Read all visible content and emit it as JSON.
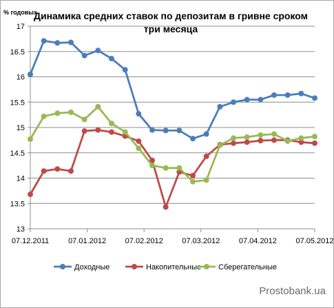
{
  "chart_data": {
    "type": "line",
    "title_line1": "Динамика средних ставок по депозитам в гривне сроком",
    "title_line2": "три месяца",
    "ylabel": "% годовых",
    "ylim": [
      13,
      17
    ],
    "yticks": [
      "13",
      "13.5",
      "14",
      "14.5",
      "15",
      "15.5",
      "16",
      "16.5",
      "17"
    ],
    "xticklabels": [
      "07.12.2011",
      "07.01.2012",
      "07.02.2012",
      "07.03.2012",
      "07.04.2012",
      "07.05.2012"
    ],
    "grid": "horizontal",
    "legend_position": "bottom",
    "watermark": "Prostobank.ua",
    "series": [
      {
        "name": "Доходные",
        "color": "#4a7ebb",
        "values": [
          16.05,
          16.71,
          16.67,
          16.68,
          16.42,
          16.52,
          16.36,
          16.14,
          15.27,
          14.95,
          14.94,
          14.94,
          14.78,
          14.87,
          15.41,
          15.5,
          15.55,
          15.55,
          15.64,
          15.64,
          15.67,
          15.58
        ]
      },
      {
        "name": "Накопительные",
        "color": "#be4b48",
        "values": [
          13.68,
          14.14,
          14.18,
          14.14,
          14.93,
          14.95,
          14.91,
          14.83,
          14.73,
          14.35,
          13.43,
          14.12,
          14.05,
          14.43,
          14.66,
          14.69,
          14.71,
          14.74,
          14.75,
          14.75,
          14.71,
          14.69
        ]
      },
      {
        "name": "Сберегательные",
        "color": "#98b954",
        "values": [
          14.77,
          15.22,
          15.28,
          15.3,
          15.16,
          15.41,
          15.08,
          14.91,
          14.59,
          14.25,
          14.2,
          14.2,
          13.93,
          13.96,
          14.65,
          14.79,
          14.81,
          14.85,
          14.87,
          14.73,
          14.79,
          14.82
        ]
      }
    ]
  }
}
